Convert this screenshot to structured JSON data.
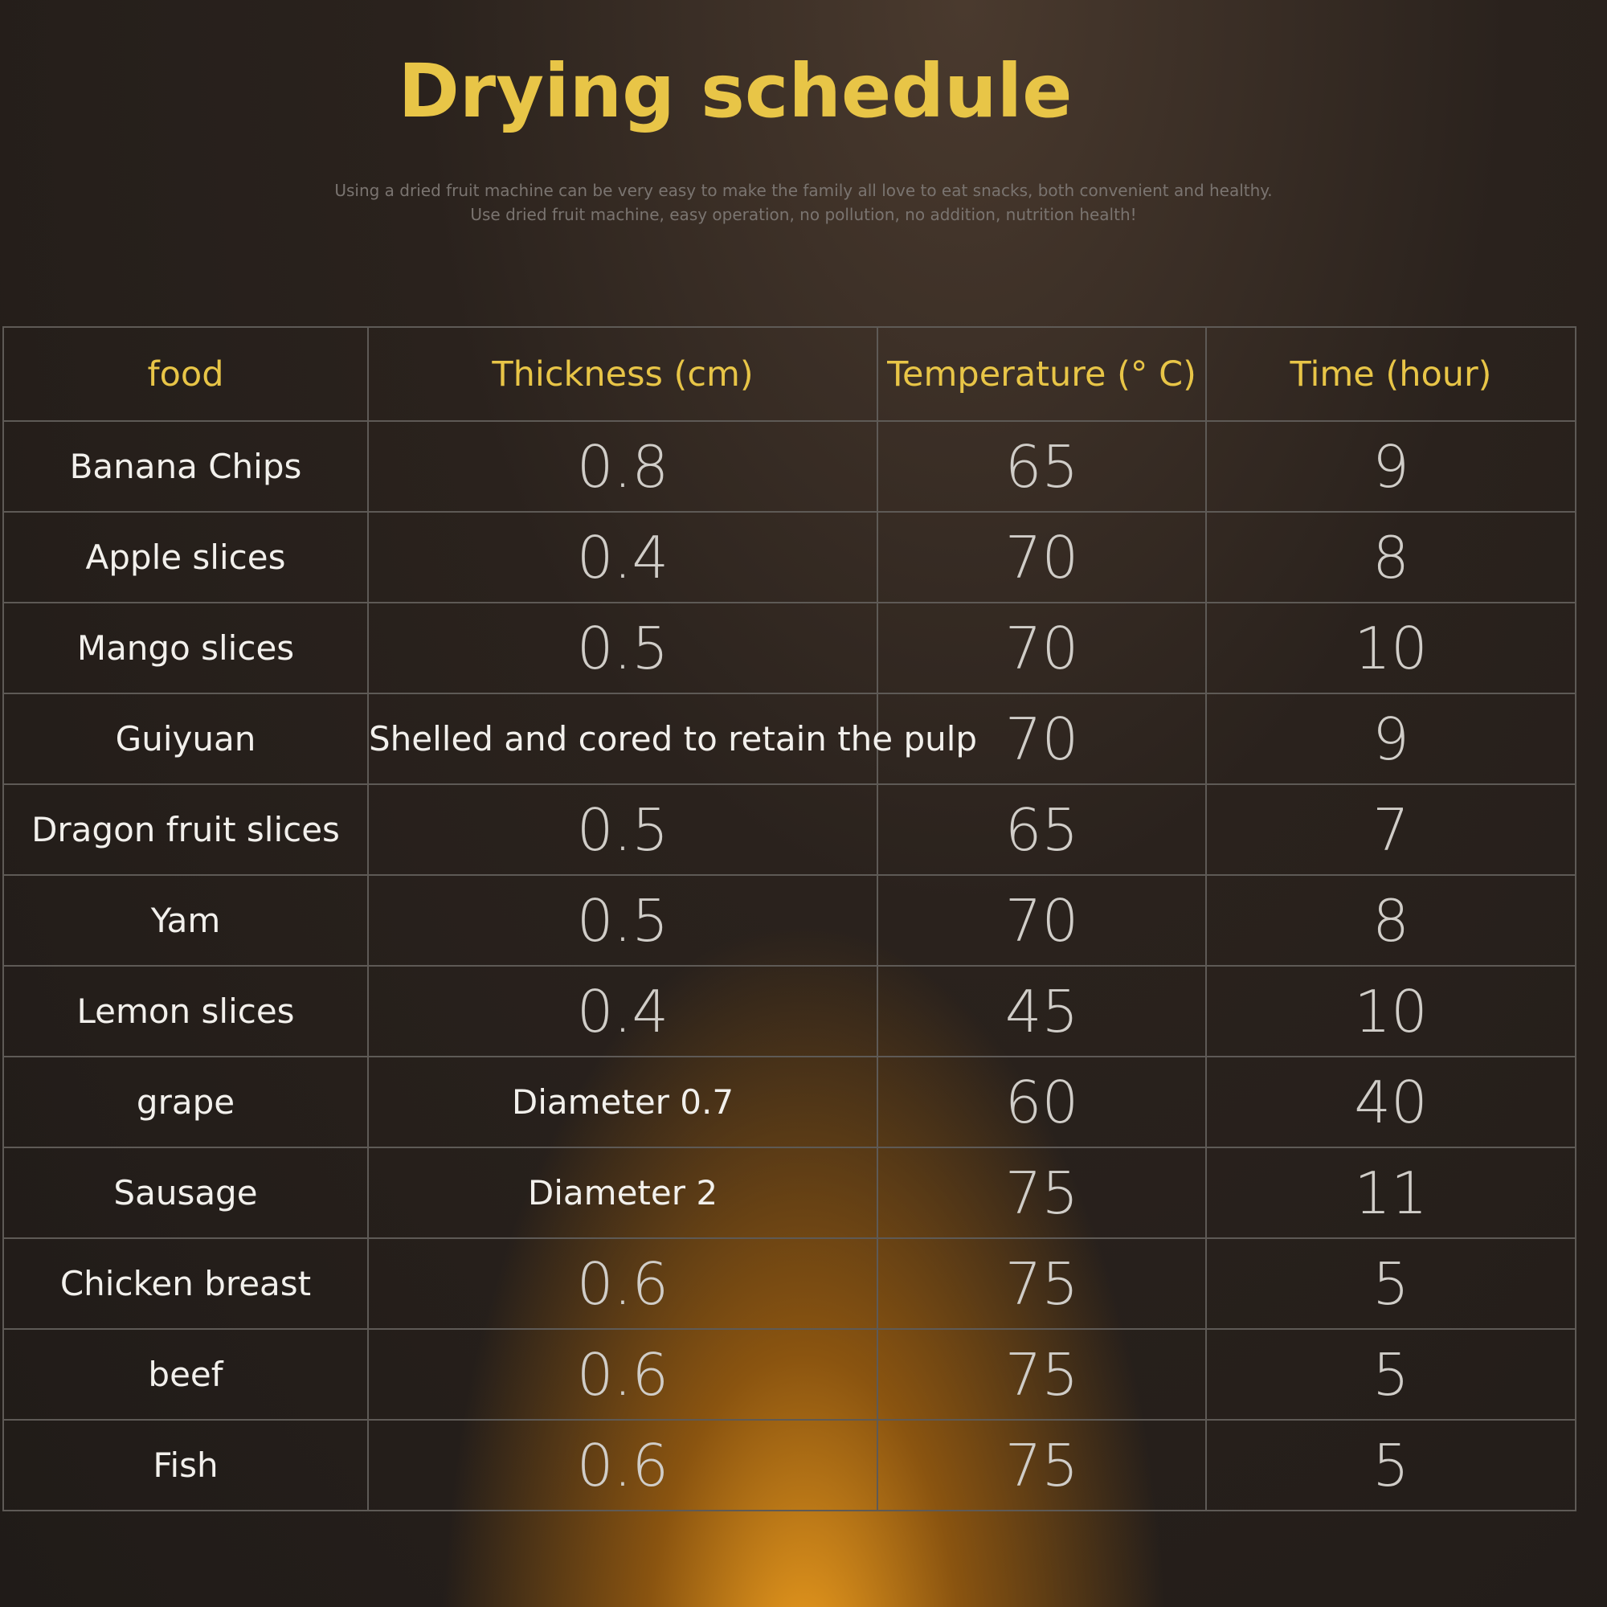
{
  "header": {
    "title": "Drying schedule",
    "subtitle": [
      "Using a dried fruit machine can be very easy to make the family all love to eat snacks, both convenient and healthy.",
      "Use dried fruit machine, easy operation, no pollution, no addition, nutrition health!"
    ]
  },
  "table": {
    "columns": [
      "food",
      "Thickness (cm)",
      "Temperature (° C)",
      "Time (hour)"
    ],
    "rows": [
      [
        "Banana Chips",
        0.8,
        65,
        9
      ],
      [
        "Apple slices",
        0.4,
        70,
        8
      ],
      [
        "Mango slices",
        0.5,
        70,
        10
      ],
      [
        "Guiyuan",
        "Shelled and cored to retain the pulp",
        70,
        9
      ],
      [
        "Dragon fruit slices",
        0.5,
        65,
        7
      ],
      [
        "Yam",
        0.5,
        70,
        8
      ],
      [
        "Lemon slices",
        0.4,
        45,
        10
      ],
      [
        "grape",
        "Diameter 0.7",
        60,
        40
      ],
      [
        "Sausage",
        "Diameter 2",
        75,
        11
      ],
      [
        "Chicken breast",
        0.6,
        75,
        5
      ],
      [
        "beef",
        0.6,
        75,
        5
      ],
      [
        "Fish",
        0.6,
        75,
        5
      ]
    ]
  }
}
